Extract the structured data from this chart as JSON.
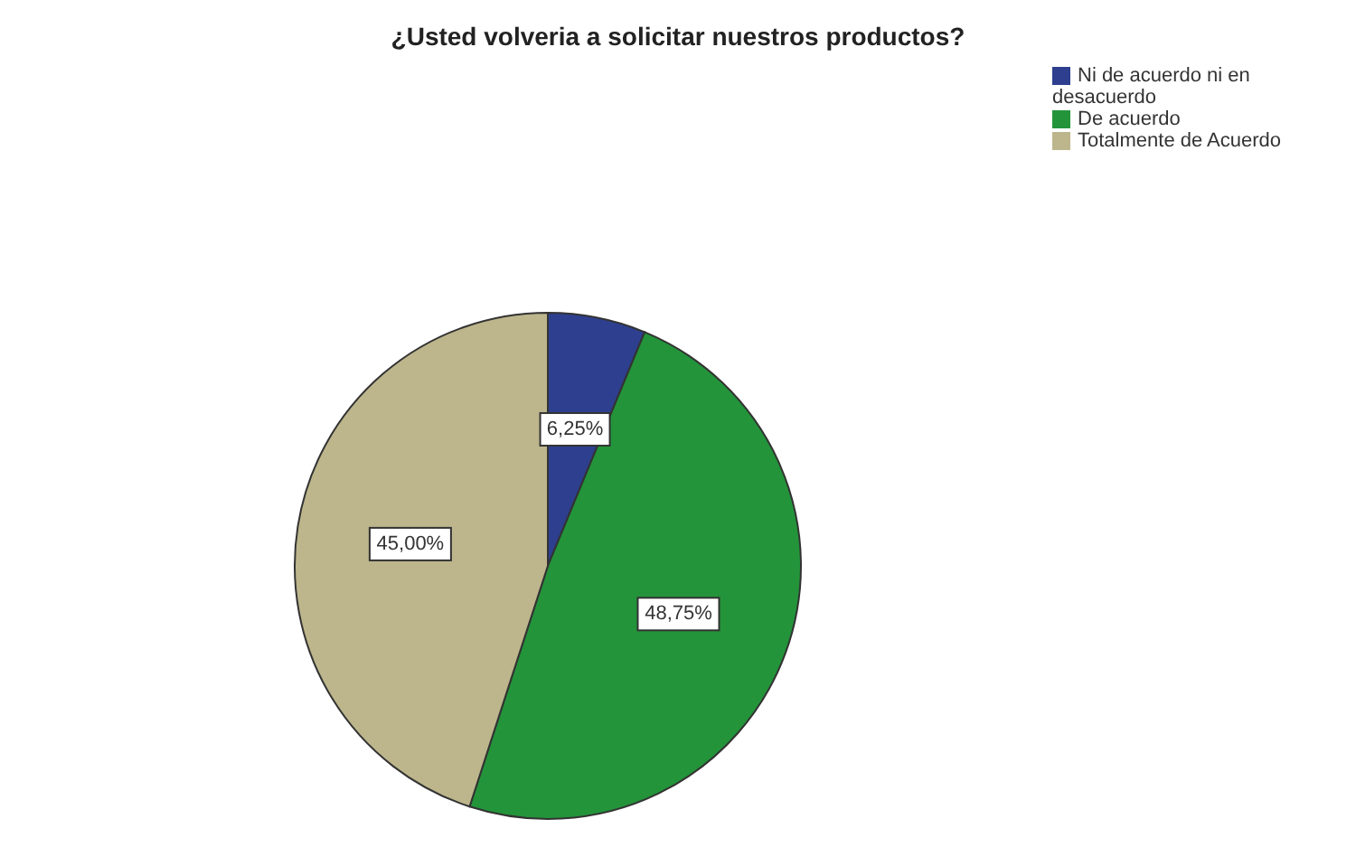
{
  "chart_data": {
    "type": "pie",
    "title": "¿Usted volveria a solicitar nuestros productos?",
    "categories": [
      "Ni de acuerdo ni en desacuerdo",
      "De acuerdo",
      "Totalmente de Acuerdo"
    ],
    "values": [
      6.25,
      48.75,
      45.0
    ],
    "colors": [
      "#2e3f8f",
      "#23943a",
      "#bdb68c"
    ],
    "value_labels": [
      "6,25%",
      "48,75%",
      "45,00%"
    ],
    "legend": "top right"
  }
}
